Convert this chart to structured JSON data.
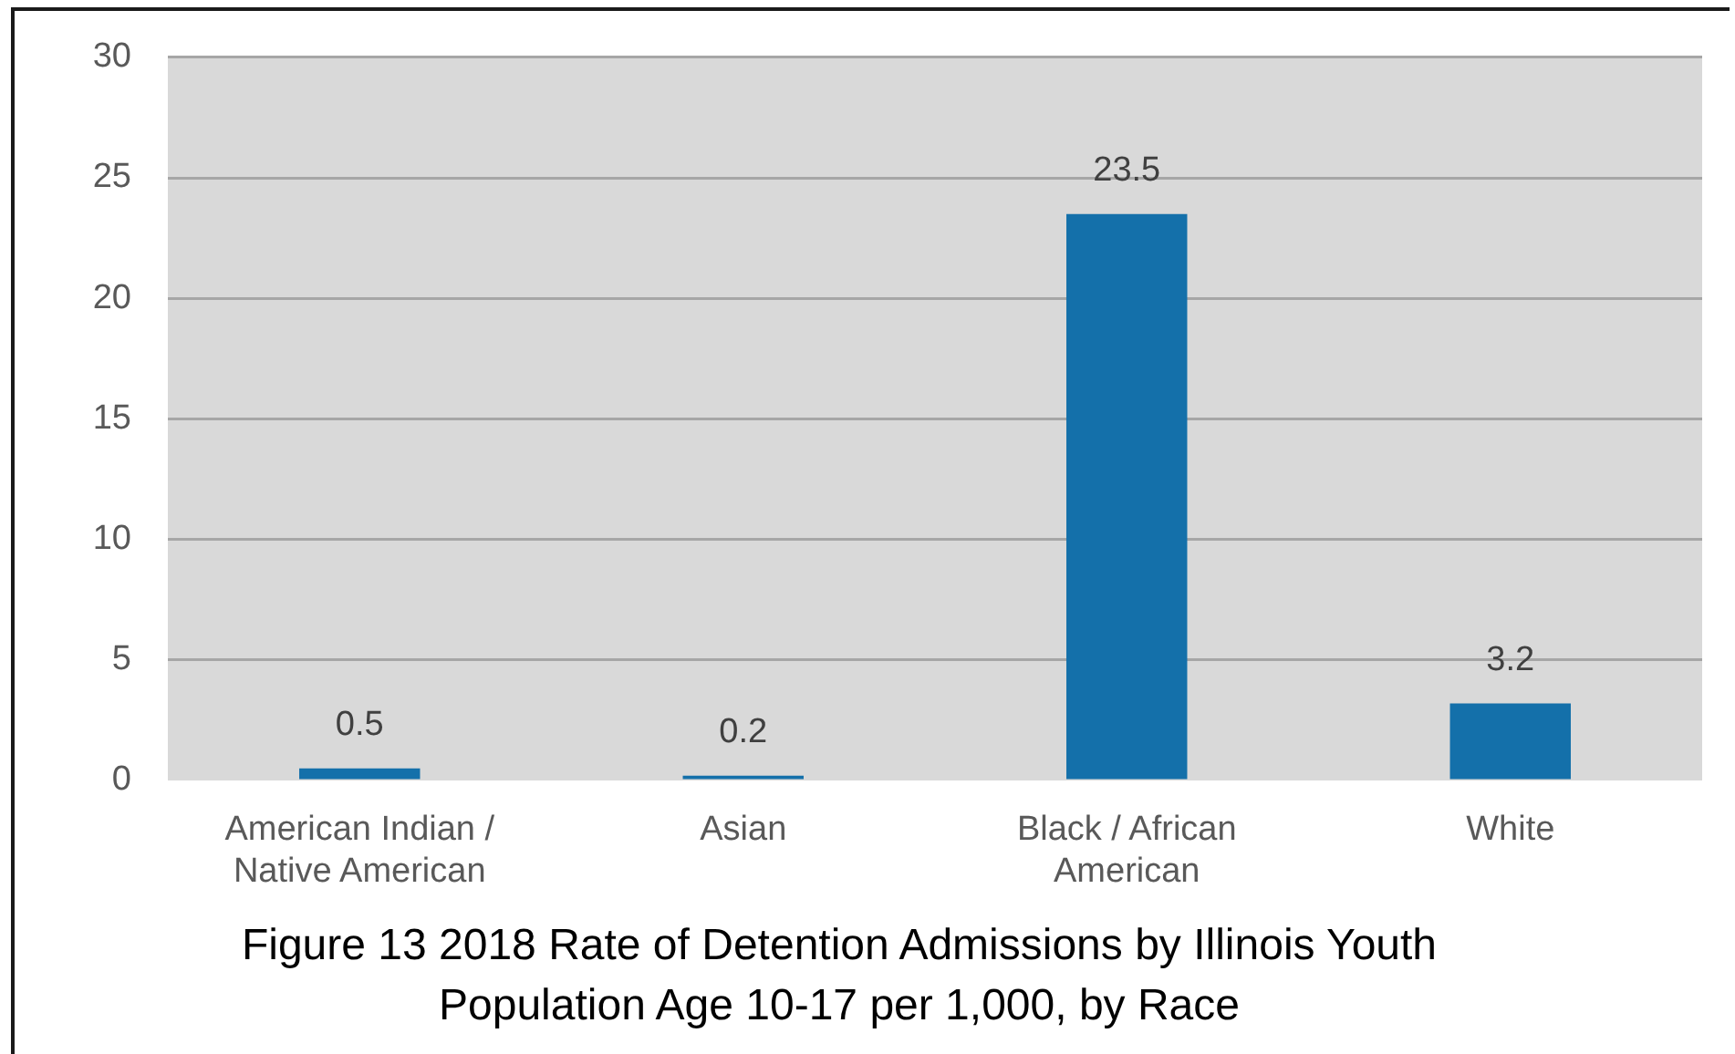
{
  "chart_data": {
    "type": "bar",
    "title": "Figure 13 2018 Rate of Detention Admissions by Illinois Youth Population Age 10-17 per 1,000, by Race",
    "categories": [
      "American Indian / Native American",
      "Asian",
      "Black / African American",
      "White"
    ],
    "values": [
      0.5,
      0.2,
      23.5,
      3.2
    ],
    "color": "#1470aa",
    "ylim": [
      0,
      30
    ],
    "yticks": [
      0,
      5,
      10,
      15,
      20,
      25,
      30
    ],
    "grid": "y",
    "data_labels": true,
    "legend": false
  }
}
